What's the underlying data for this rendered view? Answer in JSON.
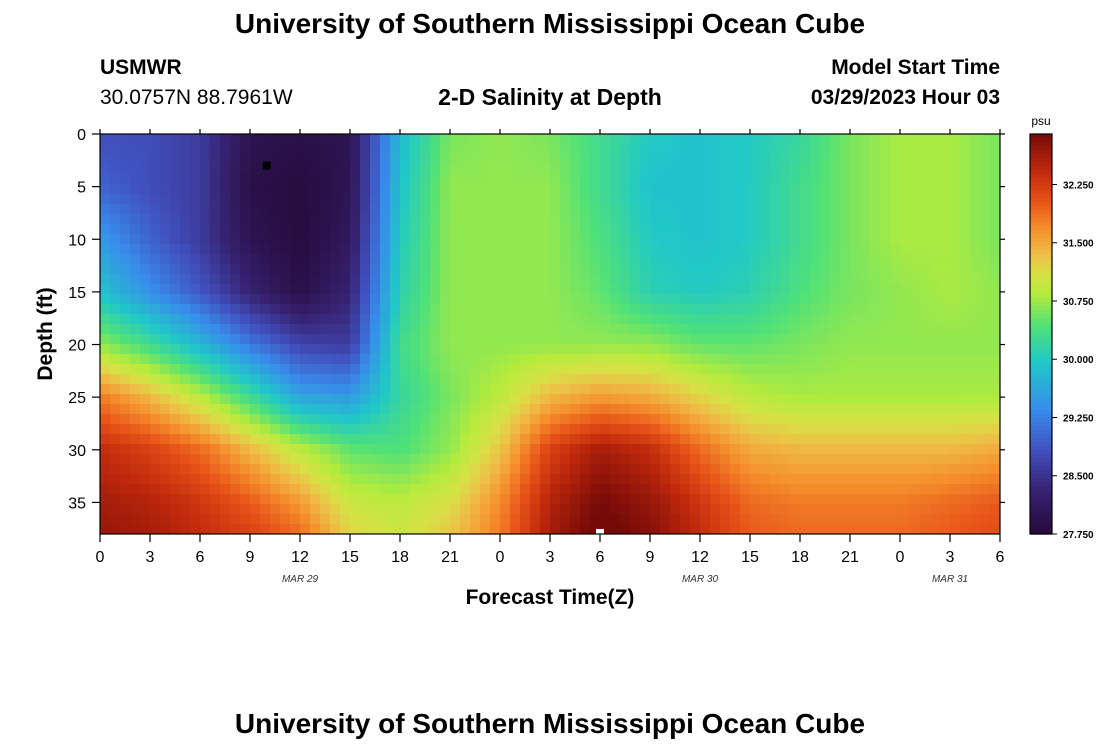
{
  "page": {
    "title": "University of Southern Mississippi Ocean Cube",
    "footer_title": "University of Southern Mississippi Ocean Cube",
    "station_id": "USMWR",
    "station_coords": "30.0757N  88.7961W",
    "plot_title": "2-D Salinity at Depth",
    "model_start_label": "Model Start Time",
    "model_start_value": "03/29/2023 Hour 03"
  },
  "chart_data": {
    "type": "heatmap",
    "title": "2-D Salinity at Depth",
    "xlabel": "Forecast Time(Z)",
    "ylabel": "Depth (ft)",
    "x_hours_range": [
      0,
      54
    ],
    "x_tick_labels": [
      "0",
      "3",
      "6",
      "9",
      "12",
      "15",
      "18",
      "21",
      "0",
      "3",
      "6",
      "9",
      "12",
      "15",
      "18",
      "21",
      "0",
      "3",
      "6"
    ],
    "date_labels": [
      {
        "label": "MAR 29",
        "hour": 12
      },
      {
        "label": "MAR 30",
        "hour": 36
      },
      {
        "label": "MAR 31",
        "hour": 51
      }
    ],
    "y_range_ft": [
      0,
      38
    ],
    "y_ticks": [
      0,
      5,
      10,
      15,
      20,
      25,
      30,
      35
    ],
    "colorbar": {
      "unit": "psu",
      "range": [
        27.75,
        32.9
      ],
      "tick_labels": [
        "27.750",
        "28.500",
        "29.250",
        "30.000",
        "30.750",
        "31.500",
        "32.250"
      ]
    },
    "grid_hours": [
      0,
      3,
      6,
      9,
      12,
      15,
      18,
      21,
      24,
      27,
      30,
      33,
      36,
      39,
      42,
      45,
      48,
      51,
      54
    ],
    "grid_depths_ft": [
      0,
      5,
      10,
      15,
      20,
      25,
      30,
      35,
      38
    ],
    "salinity_psu": [
      [
        28.8,
        28.8,
        28.6,
        28.0,
        27.9,
        28.0,
        29.8,
        30.6,
        30.7,
        30.6,
        30.3,
        30.0,
        29.9,
        30.0,
        30.2,
        30.6,
        30.8,
        30.8,
        30.6
      ],
      [
        29.0,
        28.8,
        28.6,
        27.9,
        27.8,
        28.0,
        29.9,
        30.7,
        30.7,
        30.7,
        30.3,
        29.9,
        29.9,
        30.0,
        30.3,
        30.6,
        30.8,
        30.8,
        30.6
      ],
      [
        29.5,
        29.0,
        28.6,
        28.0,
        27.8,
        28.1,
        30.0,
        30.7,
        30.7,
        30.7,
        30.4,
        30.0,
        29.9,
        30.0,
        30.3,
        30.6,
        30.8,
        30.8,
        30.6
      ],
      [
        29.9,
        29.4,
        28.9,
        28.3,
        27.9,
        28.3,
        30.1,
        30.7,
        30.7,
        30.7,
        30.5,
        30.1,
        30.0,
        30.1,
        30.4,
        30.6,
        30.7,
        30.8,
        30.7
      ],
      [
        30.7,
        30.3,
        29.8,
        29.2,
        28.7,
        28.6,
        30.3,
        30.7,
        30.7,
        30.7,
        30.7,
        30.7,
        30.5,
        30.5,
        30.6,
        30.7,
        30.7,
        30.7,
        30.7
      ],
      [
        31.8,
        31.4,
        30.9,
        30.3,
        29.6,
        29.5,
        30.2,
        30.6,
        30.9,
        31.4,
        31.6,
        31.5,
        31.2,
        30.9,
        30.8,
        30.8,
        30.8,
        30.8,
        30.8
      ],
      [
        32.4,
        32.2,
        31.9,
        31.4,
        30.9,
        30.5,
        30.4,
        30.7,
        31.3,
        32.2,
        32.6,
        32.4,
        31.9,
        31.5,
        31.4,
        31.4,
        31.4,
        31.4,
        31.5
      ],
      [
        32.6,
        32.5,
        32.3,
        32.0,
        31.6,
        31.0,
        30.9,
        31.1,
        31.7,
        32.5,
        32.9,
        32.7,
        32.3,
        31.9,
        31.8,
        31.8,
        31.8,
        31.9,
        32.0
      ],
      [
        32.7,
        32.6,
        32.4,
        32.2,
        31.9,
        31.2,
        31.0,
        31.3,
        31.8,
        32.6,
        33.0,
        32.8,
        32.4,
        32.0,
        31.9,
        31.9,
        31.9,
        32.0,
        32.1
      ]
    ],
    "markers": [
      {
        "hour": 10,
        "depth_ft": 3,
        "color": "#000000"
      },
      {
        "hour": 30,
        "depth_ft": 37.9,
        "color": "#ffffff"
      }
    ]
  }
}
